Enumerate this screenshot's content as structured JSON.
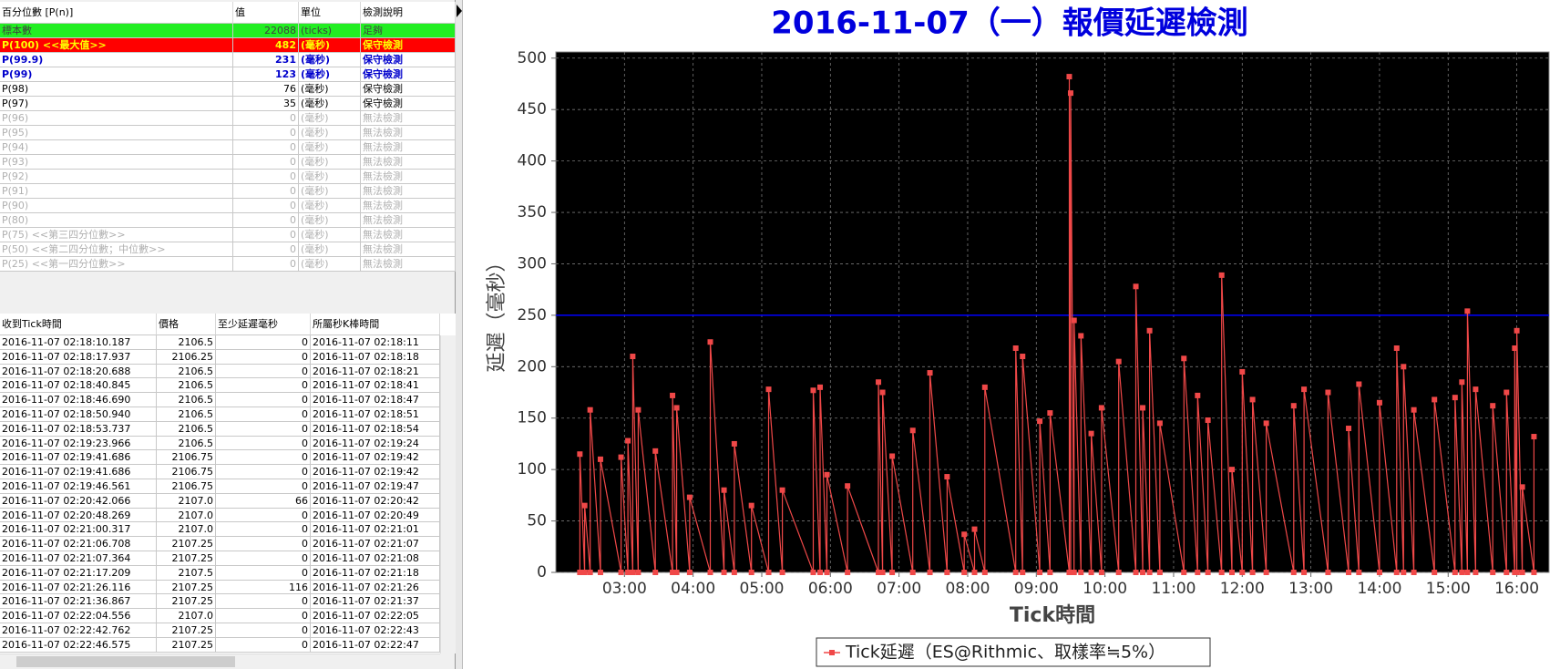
{
  "percentiles": {
    "headers": [
      "百分位數 [P(n)]",
      "值",
      "單位",
      "檢測說明"
    ],
    "rows": [
      {
        "cells": [
          "標本數",
          22088,
          "(ticks)",
          "足夠"
        ],
        "color": "#404040",
        "background": "#22ee22",
        "bold": false
      },
      {
        "cells": [
          "P(100) <<最大值>>",
          482,
          "(毫秒)",
          "保守檢測"
        ],
        "color": "#ffff00",
        "background": "#ff0000",
        "bold": true
      },
      {
        "cells": [
          "P(99.9)",
          231,
          "(毫秒)",
          "保守檢測"
        ],
        "color": "#0000cc",
        "background": "#ffffff",
        "bold": true
      },
      {
        "cells": [
          "P(99)",
          123,
          "(毫秒)",
          "保守檢測"
        ],
        "color": "#0000cc",
        "background": "#ffffff",
        "bold": true
      },
      {
        "cells": [
          "P(98)",
          76,
          "(毫秒)",
          "保守檢測"
        ],
        "color": "#000000",
        "background": "#ffffff",
        "bold": false
      },
      {
        "cells": [
          "P(97)",
          35,
          "(毫秒)",
          "保守檢測"
        ],
        "color": "#000000",
        "background": "#ffffff",
        "bold": false
      },
      {
        "cells": [
          "P(96)",
          0,
          "(毫秒)",
          "無法檢測"
        ],
        "color": "#b0b0b0",
        "background": "#ffffff",
        "bold": false
      },
      {
        "cells": [
          "P(95)",
          0,
          "(毫秒)",
          "無法檢測"
        ],
        "color": "#b0b0b0",
        "background": "#ffffff",
        "bold": false
      },
      {
        "cells": [
          "P(94)",
          0,
          "(毫秒)",
          "無法檢測"
        ],
        "color": "#b0b0b0",
        "background": "#ffffff",
        "bold": false
      },
      {
        "cells": [
          "P(93)",
          0,
          "(毫秒)",
          "無法檢測"
        ],
        "color": "#b0b0b0",
        "background": "#ffffff",
        "bold": false
      },
      {
        "cells": [
          "P(92)",
          0,
          "(毫秒)",
          "無法檢測"
        ],
        "color": "#b0b0b0",
        "background": "#ffffff",
        "bold": false
      },
      {
        "cells": [
          "P(91)",
          0,
          "(毫秒)",
          "無法檢測"
        ],
        "color": "#b0b0b0",
        "background": "#ffffff",
        "bold": false
      },
      {
        "cells": [
          "P(90)",
          0,
          "(毫秒)",
          "無法檢測"
        ],
        "color": "#b0b0b0",
        "background": "#ffffff",
        "bold": false
      },
      {
        "cells": [
          "P(80)",
          0,
          "(毫秒)",
          "無法檢測"
        ],
        "color": "#b0b0b0",
        "background": "#ffffff",
        "bold": false
      },
      {
        "cells": [
          "P(75) <<第三四分位數>>",
          0,
          "(毫秒)",
          "無法檢測"
        ],
        "color": "#b0b0b0",
        "background": "#ffffff",
        "bold": false
      },
      {
        "cells": [
          "P(50) <<第二四分位數；中位數>>",
          0,
          "(毫秒)",
          "無法檢測"
        ],
        "color": "#b0b0b0",
        "background": "#ffffff",
        "bold": false
      },
      {
        "cells": [
          "P(25) <<第一四分位數>>",
          0,
          "(毫秒)",
          "無法檢測"
        ],
        "color": "#b0b0b0",
        "background": "#ffffff",
        "bold": false
      }
    ]
  },
  "ticks": {
    "headers": [
      "收到Tick時間",
      "價格",
      "至少延遲毫秒",
      "所屬秒K棒時間"
    ],
    "rows": [
      [
        "2016-11-07 02:18:10.187",
        "2106.5",
        "0",
        "2016-11-07 02:18:11"
      ],
      [
        "2016-11-07 02:18:17.937",
        "2106.25",
        "0",
        "2016-11-07 02:18:18"
      ],
      [
        "2016-11-07 02:18:20.688",
        "2106.5",
        "0",
        "2016-11-07 02:18:21"
      ],
      [
        "2016-11-07 02:18:40.845",
        "2106.5",
        "0",
        "2016-11-07 02:18:41"
      ],
      [
        "2016-11-07 02:18:46.690",
        "2106.5",
        "0",
        "2016-11-07 02:18:47"
      ],
      [
        "2016-11-07 02:18:50.940",
        "2106.5",
        "0",
        "2016-11-07 02:18:51"
      ],
      [
        "2016-11-07 02:18:53.737",
        "2106.5",
        "0",
        "2016-11-07 02:18:54"
      ],
      [
        "2016-11-07 02:19:23.966",
        "2106.5",
        "0",
        "2016-11-07 02:19:24"
      ],
      [
        "2016-11-07 02:19:41.686",
        "2106.75",
        "0",
        "2016-11-07 02:19:42"
      ],
      [
        "2016-11-07 02:19:41.686",
        "2106.75",
        "0",
        "2016-11-07 02:19:42"
      ],
      [
        "2016-11-07 02:19:46.561",
        "2106.75",
        "0",
        "2016-11-07 02:19:47"
      ],
      [
        "2016-11-07 02:20:42.066",
        "2107.0",
        "66",
        "2016-11-07 02:20:42"
      ],
      [
        "2016-11-07 02:20:48.269",
        "2107.0",
        "0",
        "2016-11-07 02:20:49"
      ],
      [
        "2016-11-07 02:21:00.317",
        "2107.0",
        "0",
        "2016-11-07 02:21:01"
      ],
      [
        "2016-11-07 02:21:06.708",
        "2107.25",
        "0",
        "2016-11-07 02:21:07"
      ],
      [
        "2016-11-07 02:21:07.364",
        "2107.25",
        "0",
        "2016-11-07 02:21:08"
      ],
      [
        "2016-11-07 02:21:17.209",
        "2107.5",
        "0",
        "2016-11-07 02:21:18"
      ],
      [
        "2016-11-07 02:21:26.116",
        "2107.25",
        "116",
        "2016-11-07 02:21:26"
      ],
      [
        "2016-11-07 02:21:36.867",
        "2107.25",
        "0",
        "2016-11-07 02:21:37"
      ],
      [
        "2016-11-07 02:22:04.556",
        "2107.0",
        "0",
        "2016-11-07 02:22:05"
      ],
      [
        "2016-11-07 02:22:42.762",
        "2107.25",
        "0",
        "2016-11-07 02:22:43"
      ],
      [
        "2016-11-07 02:22:46.575",
        "2107.25",
        "0",
        "2016-11-07 02:22:47"
      ]
    ]
  },
  "chart_data": {
    "type": "line",
    "title": "2016-11-07（一）報價延遲檢測",
    "title_color": "#0000dd",
    "x_label": "Tick時間",
    "y_label": "延遲（毫秒）",
    "xlim": [
      2.0,
      16.47
    ],
    "ylim": [
      0,
      506
    ],
    "xticks": [
      {
        "value": 3,
        "label": "03:00"
      },
      {
        "value": 4,
        "label": "04:00"
      },
      {
        "value": 5,
        "label": "05:00"
      },
      {
        "value": 6,
        "label": "06:00"
      },
      {
        "value": 7,
        "label": "07:00"
      },
      {
        "value": 8,
        "label": "08:00"
      },
      {
        "value": 9,
        "label": "09:00"
      },
      {
        "value": 10,
        "label": "10:00"
      },
      {
        "value": 11,
        "label": "11:00"
      },
      {
        "value": 12,
        "label": "12:00"
      },
      {
        "value": 13,
        "label": "13:00"
      },
      {
        "value": 14,
        "label": "14:00"
      },
      {
        "value": 15,
        "label": "15:00"
      },
      {
        "value": 16,
        "label": "16:00"
      }
    ],
    "yticks": [
      0,
      50,
      100,
      150,
      200,
      250,
      300,
      350,
      400,
      450,
      500
    ],
    "grid": true,
    "background": "#000000",
    "reference_line": {
      "value": 250,
      "color": "#0000ff"
    },
    "legend": "bottom",
    "series": [
      {
        "name": "Tick延遲（ES@Rithmic、取樣率≒5%）",
        "color": "#f04848",
        "x": [
          2.35,
          2.35,
          2.42,
          2.42,
          2.5,
          2.5,
          2.65,
          2.65,
          2.95,
          2.95,
          3.05,
          3.05,
          3.12,
          3.12,
          3.2,
          3.2,
          3.45,
          3.45,
          3.7,
          3.7,
          3.76,
          3.76,
          3.95,
          3.95,
          4.25,
          4.25,
          4.45,
          4.45,
          4.6,
          4.6,
          4.85,
          4.85,
          5.1,
          5.1,
          5.3,
          5.3,
          5.75,
          5.75,
          5.85,
          5.85,
          5.95,
          5.95,
          6.25,
          6.25,
          6.7,
          6.7,
          6.76,
          6.76,
          6.9,
          6.9,
          7.2,
          7.2,
          7.45,
          7.45,
          7.7,
          7.7,
          7.95,
          7.95,
          8.1,
          8.1,
          8.25,
          8.25,
          8.7,
          8.7,
          8.8,
          8.8,
          9.05,
          9.05,
          9.2,
          9.2,
          9.48,
          9.48,
          9.5,
          9.5,
          9.55,
          9.55,
          9.65,
          9.65,
          9.8,
          9.8,
          9.95,
          9.95,
          10.2,
          10.2,
          10.45,
          10.45,
          10.55,
          10.55,
          10.65,
          10.65,
          10.8,
          10.8,
          11.15,
          11.15,
          11.35,
          11.35,
          11.5,
          11.5,
          11.7,
          11.7,
          11.85,
          11.85,
          12.0,
          12.0,
          12.15,
          12.15,
          12.35,
          12.35,
          12.75,
          12.75,
          12.9,
          12.9,
          13.25,
          13.25,
          13.55,
          13.55,
          13.7,
          13.7,
          14.0,
          14.0,
          14.25,
          14.25,
          14.35,
          14.35,
          14.5,
          14.5,
          14.8,
          14.8,
          15.1,
          15.1,
          15.2,
          15.2,
          15.28,
          15.28,
          15.4,
          15.4,
          15.65,
          15.65,
          15.85,
          15.85,
          15.97,
          15.97,
          16.0,
          16.0,
          16.08,
          16.08,
          16.25,
          16.25
        ],
        "values": [
          0,
          115,
          0,
          65,
          0,
          158,
          0,
          110,
          0,
          112,
          0,
          128,
          0,
          210,
          0,
          158,
          0,
          118,
          0,
          172,
          0,
          160,
          0,
          73,
          0,
          224,
          0,
          80,
          0,
          125,
          0,
          65,
          0,
          178,
          0,
          80,
          0,
          177,
          0,
          180,
          0,
          95,
          0,
          84,
          0,
          185,
          0,
          175,
          0,
          113,
          0,
          138,
          0,
          194,
          0,
          93,
          0,
          37,
          0,
          42,
          0,
          180,
          0,
          218,
          0,
          210,
          0,
          147,
          0,
          155,
          0,
          482,
          0,
          466,
          0,
          245,
          0,
          230,
          0,
          135,
          0,
          160,
          0,
          205,
          0,
          278,
          0,
          160,
          0,
          235,
          0,
          145,
          0,
          208,
          0,
          172,
          0,
          148,
          0,
          289,
          0,
          100,
          0,
          195,
          0,
          168,
          0,
          145,
          0,
          162,
          0,
          178,
          0,
          175,
          0,
          140,
          0,
          183,
          0,
          165,
          0,
          218,
          0,
          200,
          0,
          158,
          0,
          168,
          0,
          170,
          0,
          185,
          0,
          254,
          0,
          178,
          0,
          162,
          0,
          175,
          0,
          218,
          0,
          235,
          0,
          83,
          0,
          132
        ]
      }
    ]
  }
}
